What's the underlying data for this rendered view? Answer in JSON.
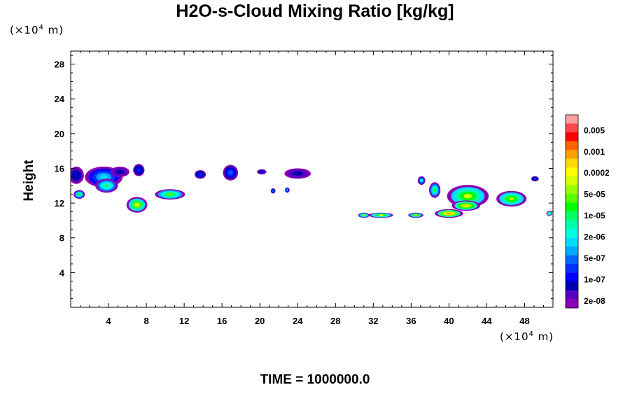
{
  "chart_data": {
    "type": "heatmap",
    "title": "H2O-s-Cloud Mixing Ratio [kg/kg]",
    "ylabel": "Height",
    "x_unit": "(×10",
    "x_unit_exp": "4",
    "x_unit_end": " m)",
    "y_unit": "(×10",
    "y_unit_exp": "4",
    "y_unit_end": " m)",
    "xlim": [
      0,
      51
    ],
    "ylim": [
      0,
      29.5
    ],
    "x_ticks": [
      4,
      8,
      12,
      16,
      20,
      24,
      28,
      32,
      36,
      40,
      44,
      48
    ],
    "y_ticks": [
      4,
      8,
      12,
      16,
      20,
      24,
      28
    ],
    "colorbar": {
      "labels": [
        "0.005",
        "0.001",
        "0.0002",
        "5e-05",
        "1e-05",
        "2e-06",
        "5e-07",
        "1e-07",
        "2e-08"
      ],
      "colors": [
        "#ff9f9f",
        "#ff4848",
        "#ff0000",
        "#ff6400",
        "#ffa000",
        "#ffd800",
        "#ffff00",
        "#d8ff00",
        "#99ff00",
        "#55ff00",
        "#00ff00",
        "#00ff66",
        "#00ffaa",
        "#00ffe0",
        "#00ddff",
        "#00a8ff",
        "#0066ff",
        "#0030ff",
        "#0000ff",
        "#0000b0",
        "#5a00c0",
        "#8c00b4"
      ]
    },
    "clouds": [
      {
        "x": 0.6,
        "y": 15.2,
        "rx": 0.8,
        "ry": 1.0,
        "level": 0.15
      },
      {
        "x": 0.9,
        "y": 13.0,
        "rx": 0.6,
        "ry": 0.5,
        "level": 0.55
      },
      {
        "x": 3.5,
        "y": 15.0,
        "rx": 2.0,
        "ry": 1.2,
        "level": 0.35
      },
      {
        "x": 3.8,
        "y": 14.0,
        "rx": 1.2,
        "ry": 0.8,
        "level": 0.5
      },
      {
        "x": 5.2,
        "y": 15.6,
        "rx": 1.0,
        "ry": 0.6,
        "level": 0.12
      },
      {
        "x": 7.2,
        "y": 15.8,
        "rx": 0.6,
        "ry": 0.7,
        "level": 0.2
      },
      {
        "x": 7.0,
        "y": 11.8,
        "rx": 1.1,
        "ry": 0.9,
        "level": 0.72
      },
      {
        "x": 10.5,
        "y": 13.0,
        "rx": 1.6,
        "ry": 0.6,
        "level": 0.58
      },
      {
        "x": 13.7,
        "y": 15.3,
        "rx": 0.6,
        "ry": 0.5,
        "level": 0.2
      },
      {
        "x": 16.9,
        "y": 15.5,
        "rx": 0.8,
        "ry": 0.9,
        "level": 0.25
      },
      {
        "x": 20.2,
        "y": 15.6,
        "rx": 0.5,
        "ry": 0.3,
        "level": 0.15
      },
      {
        "x": 24.0,
        "y": 15.4,
        "rx": 1.4,
        "ry": 0.6,
        "level": 0.12
      },
      {
        "x": 21.4,
        "y": 13.4,
        "rx": 0.25,
        "ry": 0.3,
        "level": 0.25
      },
      {
        "x": 22.9,
        "y": 13.5,
        "rx": 0.25,
        "ry": 0.3,
        "level": 0.3
      },
      {
        "x": 31.0,
        "y": 10.6,
        "rx": 0.6,
        "ry": 0.3,
        "level": 0.62
      },
      {
        "x": 32.8,
        "y": 10.6,
        "rx": 1.3,
        "ry": 0.3,
        "level": 0.68
      },
      {
        "x": 36.5,
        "y": 10.6,
        "rx": 0.8,
        "ry": 0.3,
        "level": 0.65
      },
      {
        "x": 40.0,
        "y": 10.8,
        "rx": 1.5,
        "ry": 0.5,
        "level": 0.85
      },
      {
        "x": 37.1,
        "y": 14.6,
        "rx": 0.4,
        "ry": 0.5,
        "level": 0.4
      },
      {
        "x": 38.5,
        "y": 13.5,
        "rx": 0.6,
        "ry": 0.9,
        "level": 0.55
      },
      {
        "x": 42.0,
        "y": 12.8,
        "rx": 2.2,
        "ry": 1.3,
        "level": 0.68
      },
      {
        "x": 41.8,
        "y": 11.7,
        "rx": 1.5,
        "ry": 0.6,
        "level": 0.78
      },
      {
        "x": 46.6,
        "y": 12.5,
        "rx": 1.6,
        "ry": 0.9,
        "level": 0.66
      },
      {
        "x": 49.1,
        "y": 14.8,
        "rx": 0.4,
        "ry": 0.3,
        "level": 0.2
      },
      {
        "x": 50.6,
        "y": 10.8,
        "rx": 0.3,
        "ry": 0.3,
        "level": 0.6
      }
    ]
  },
  "time_label": "TIME = 1000000.0"
}
